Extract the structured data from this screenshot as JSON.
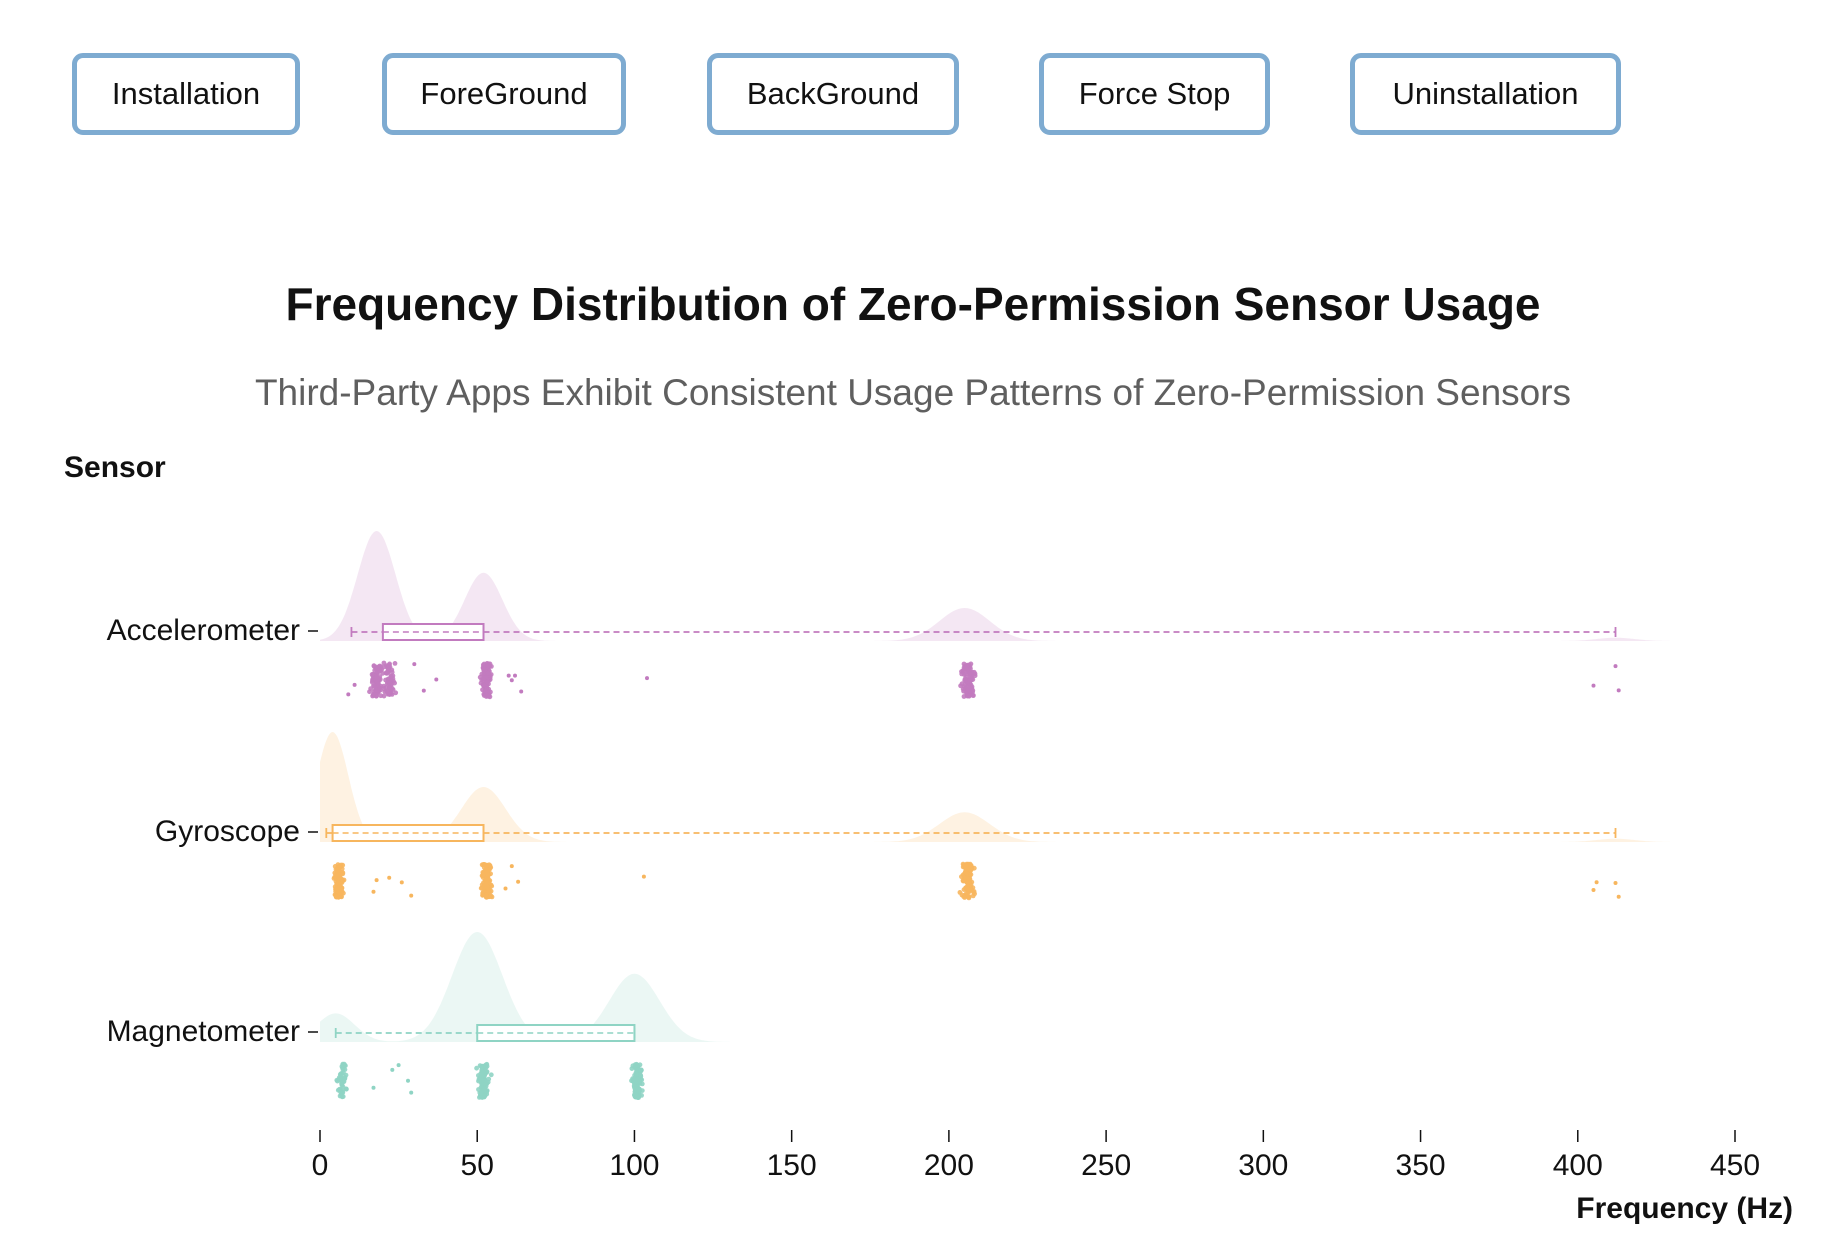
{
  "toolbar": {
    "buttons": [
      {
        "label": "Installation"
      },
      {
        "label": "ForeGround"
      },
      {
        "label": "BackGround"
      },
      {
        "label": "Force Stop"
      },
      {
        "label": "Uninstallation"
      }
    ]
  },
  "chart_data": {
    "type": "raincloud",
    "title": "Frequency Distribution of Zero-Permission Sensor Usage",
    "subtitle": "Third-Party Apps Exhibit Consistent Usage Patterns of Zero-Permission Sensors",
    "ylabel": "Sensor",
    "xlabel": "Frequency (Hz)",
    "xlim": [
      0,
      450
    ],
    "xticks": [
      0,
      50,
      100,
      150,
      200,
      250,
      300,
      350,
      400,
      450
    ],
    "grid": false,
    "series": [
      {
        "name": "Accelerometer",
        "color": "#c27bbf",
        "box": {
          "whisker_low": 10,
          "q1": 20,
          "q3": 52,
          "whisker_high": 412
        },
        "density_peaks": [
          {
            "x": 18,
            "height": 1.0,
            "width": 6
          },
          {
            "x": 52,
            "height": 0.62,
            "width": 6
          },
          {
            "x": 205,
            "height": 0.3,
            "width": 8
          },
          {
            "x": 412,
            "height": 0.03,
            "width": 6
          }
        ],
        "clusters": [
          {
            "center": 18,
            "spread": 2.5,
            "count": 80
          },
          {
            "center": 22,
            "spread": 2.5,
            "count": 60
          },
          {
            "center": 53,
            "spread": 2,
            "count": 120
          },
          {
            "center": 206,
            "spread": 3,
            "count": 100
          }
        ],
        "outliers": [
          9,
          11,
          30,
          33,
          37,
          60,
          61,
          62,
          64,
          104,
          405,
          412,
          413
        ]
      },
      {
        "name": "Gyroscope",
        "color": "#f7b65e",
        "box": {
          "whisker_low": 2,
          "q1": 4,
          "q3": 52,
          "whisker_high": 412
        },
        "density_peaks": [
          {
            "x": 4,
            "height": 1.0,
            "width": 5
          },
          {
            "x": 52,
            "height": 0.5,
            "width": 7
          },
          {
            "x": 205,
            "height": 0.27,
            "width": 8
          },
          {
            "x": 412,
            "height": 0.03,
            "width": 6
          }
        ],
        "clusters": [
          {
            "center": 6,
            "spread": 2,
            "count": 110
          },
          {
            "center": 53,
            "spread": 2,
            "count": 110
          },
          {
            "center": 206,
            "spread": 3,
            "count": 110
          }
        ],
        "outliers": [
          17,
          18,
          22,
          26,
          29,
          59,
          61,
          63,
          103,
          405,
          406,
          412,
          413
        ]
      },
      {
        "name": "Magnetometer",
        "color": "#8fd4c4",
        "box": {
          "whisker_low": 5,
          "q1": 50,
          "q3": 100,
          "whisker_high": 100
        },
        "density_peaks": [
          {
            "x": 5,
            "height": 0.26,
            "width": 6
          },
          {
            "x": 50,
            "height": 1.0,
            "width": 8
          },
          {
            "x": 100,
            "height": 0.62,
            "width": 8
          }
        ],
        "clusters": [
          {
            "center": 7,
            "spread": 2,
            "count": 50
          },
          {
            "center": 52,
            "spread": 2,
            "count": 110
          },
          {
            "center": 101,
            "spread": 2,
            "count": 110
          }
        ],
        "outliers": [
          17,
          23,
          25,
          28,
          29
        ]
      }
    ]
  }
}
